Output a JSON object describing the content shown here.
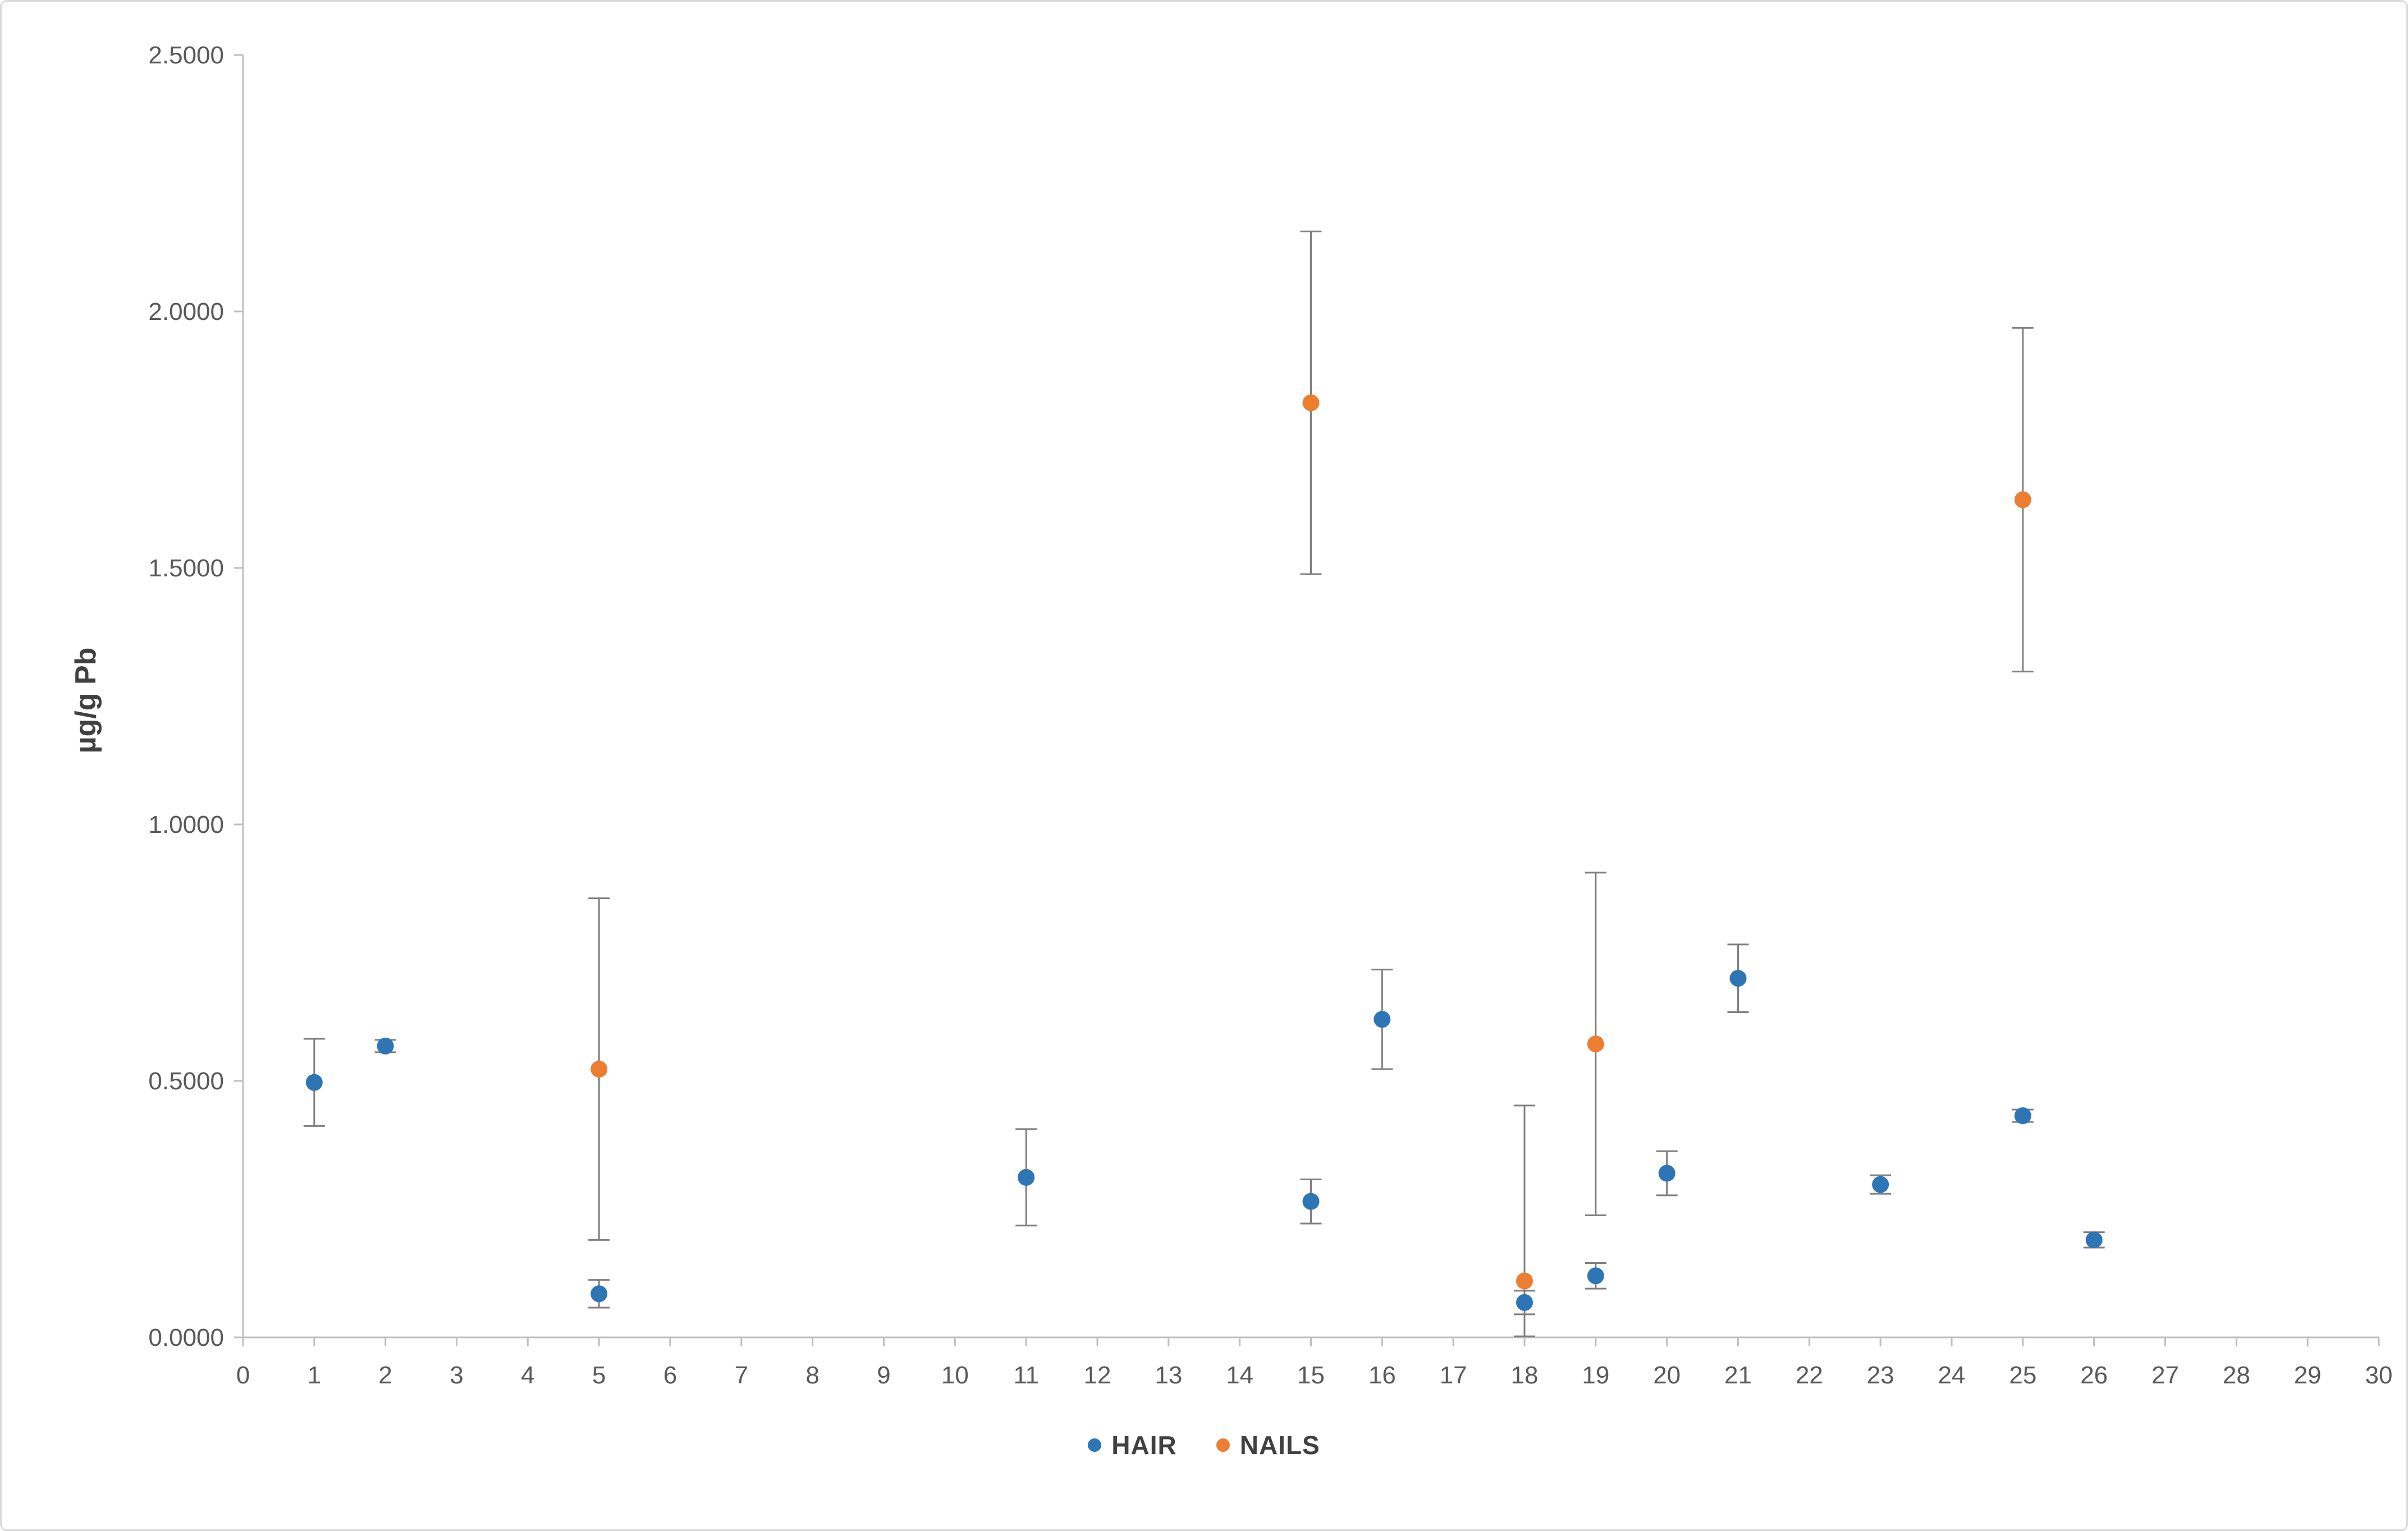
{
  "chart_data": {
    "type": "scatter",
    "title": "",
    "xlabel": "",
    "ylabel": "µg/g Pb",
    "xlim": [
      0,
      30
    ],
    "ylim": [
      0,
      2.5
    ],
    "x_ticks": [
      0,
      1,
      2,
      3,
      4,
      5,
      6,
      7,
      8,
      9,
      10,
      11,
      12,
      13,
      14,
      15,
      16,
      17,
      18,
      19,
      20,
      21,
      22,
      23,
      24,
      25,
      26,
      27,
      28,
      29,
      30
    ],
    "y_ticks": [
      "0.0000",
      "0.5000",
      "1.0000",
      "1.5000",
      "2.0000",
      "2.5000"
    ],
    "grid": false,
    "legend_position": "bottom",
    "axis_color": "#BFBFBF",
    "error_bar_color": "#7F7F7F",
    "tick_label_color": "#595959",
    "series": [
      {
        "name": "HAIR",
        "color": "#2E75B6",
        "points": [
          {
            "x": 1,
            "y": 0.497,
            "lo": 0.412,
            "hi": 0.582
          },
          {
            "x": 2,
            "y": 0.568,
            "lo": 0.556,
            "hi": 0.58
          },
          {
            "x": 5,
            "y": 0.085,
            "lo": 0.058,
            "hi": 0.112
          },
          {
            "x": 11,
            "y": 0.312,
            "lo": 0.218,
            "hi": 0.406
          },
          {
            "x": 15,
            "y": 0.265,
            "lo": 0.222,
            "hi": 0.308
          },
          {
            "x": 16,
            "y": 0.62,
            "lo": 0.523,
            "hi": 0.717
          },
          {
            "x": 18,
            "y": 0.068,
            "lo": 0.045,
            "hi": 0.091
          },
          {
            "x": 19,
            "y": 0.12,
            "lo": 0.095,
            "hi": 0.145
          },
          {
            "x": 20,
            "y": 0.32,
            "lo": 0.277,
            "hi": 0.363
          },
          {
            "x": 21,
            "y": 0.7,
            "lo": 0.634,
            "hi": 0.766
          },
          {
            "x": 23,
            "y": 0.298,
            "lo": 0.28,
            "hi": 0.316
          },
          {
            "x": 25,
            "y": 0.432,
            "lo": 0.42,
            "hi": 0.444
          },
          {
            "x": 26,
            "y": 0.19,
            "lo": 0.175,
            "hi": 0.205
          }
        ]
      },
      {
        "name": "NAILS",
        "color": "#ED7D31",
        "points": [
          {
            "x": 5,
            "y": 0.523,
            "lo": 0.19,
            "hi": 0.856
          },
          {
            "x": 15,
            "y": 1.822,
            "lo": 1.488,
            "hi": 2.156
          },
          {
            "x": 18,
            "y": 0.11,
            "lo": 0.002,
            "hi": 0.452
          },
          {
            "x": 19,
            "y": 0.572,
            "lo": 0.238,
            "hi": 0.906
          },
          {
            "x": 25,
            "y": 1.633,
            "lo": 1.298,
            "hi": 1.968
          }
        ]
      }
    ]
  }
}
